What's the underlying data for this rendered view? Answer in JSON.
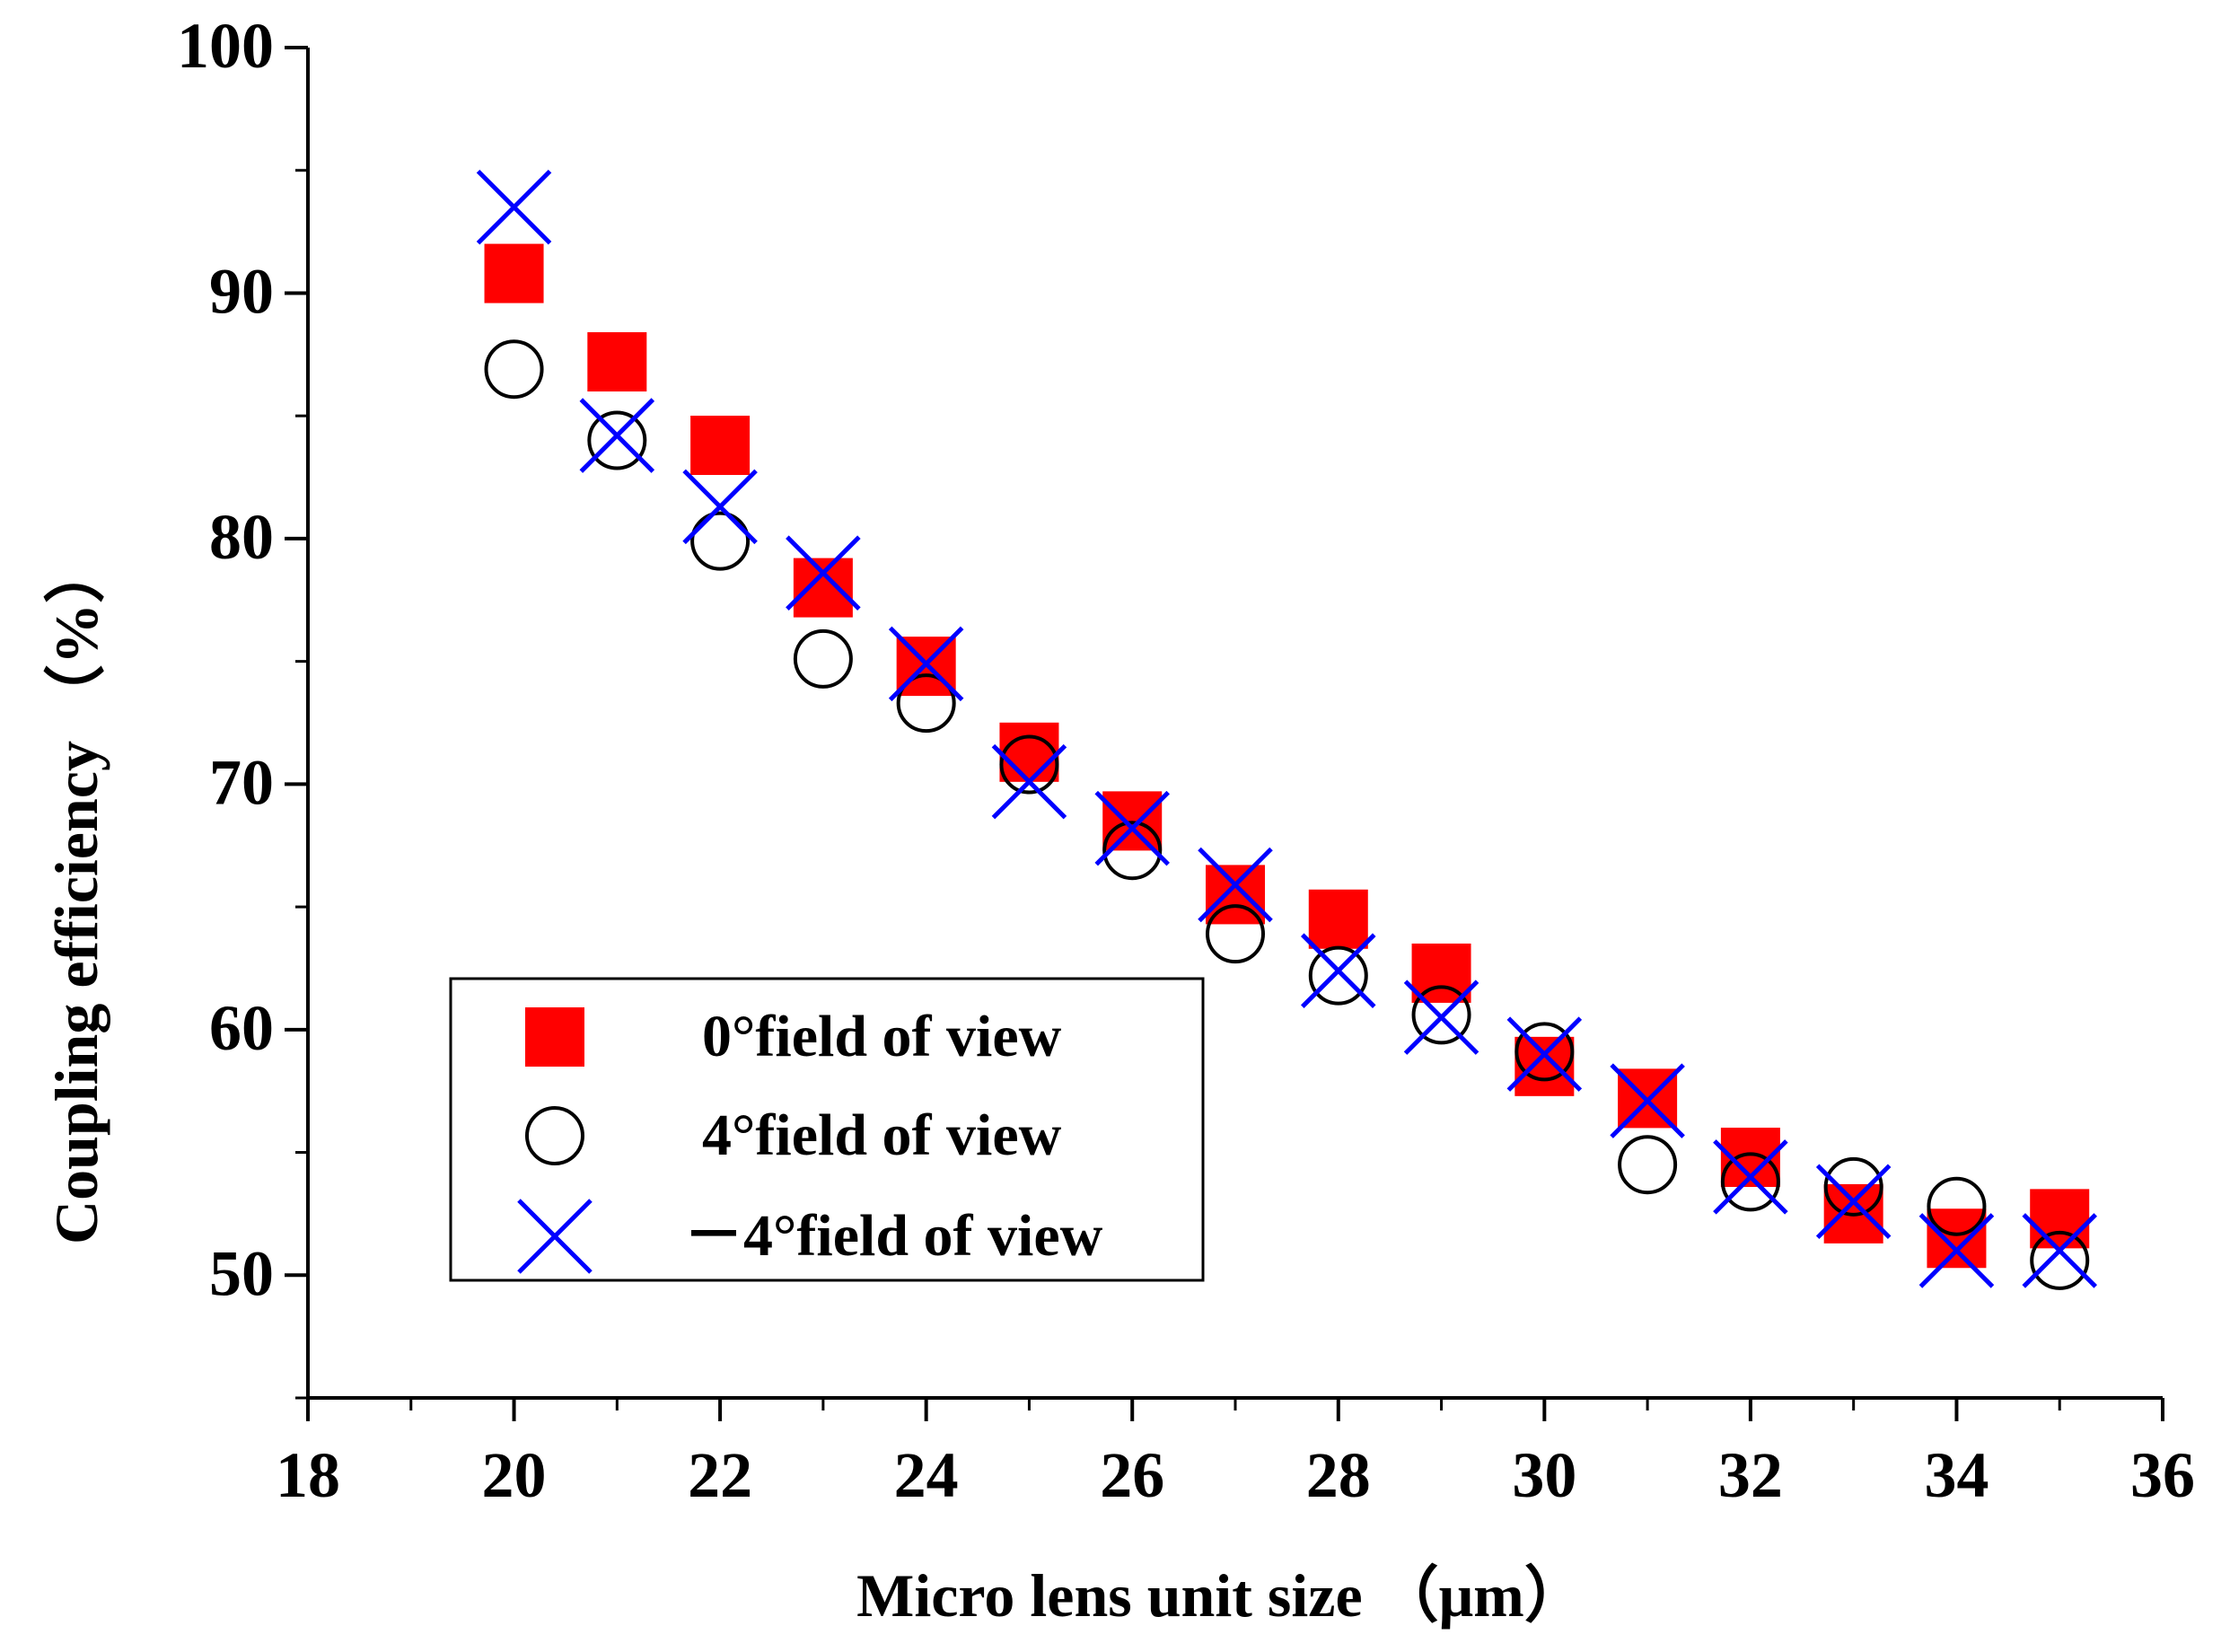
{
  "chart_data": {
    "type": "scatter",
    "title": "",
    "xlabel": "Micro lens unit size （μm）",
    "ylabel": "Coupling efficiency （%）",
    "xlim": [
      18,
      36
    ],
    "ylim": [
      45,
      100
    ],
    "xticks": [
      18,
      20,
      22,
      24,
      26,
      28,
      30,
      32,
      34,
      36
    ],
    "yticks": [
      50,
      60,
      70,
      80,
      90,
      100
    ],
    "x": [
      20,
      21,
      22,
      23,
      24,
      25,
      26,
      27,
      28,
      29,
      30,
      31,
      32,
      33,
      34,
      35
    ],
    "legend_position": "bottom-left",
    "grid": false,
    "series": [
      {
        "name": "0°field of view",
        "marker": "filled-square",
        "color": "#ff0000",
        "values": [
          90.8,
          87.2,
          83.8,
          78.0,
          74.8,
          71.3,
          68.5,
          65.5,
          64.5,
          62.3,
          58.5,
          57.2,
          54.8,
          52.5,
          51.5,
          52.3
        ]
      },
      {
        "name": "4°field of view",
        "marker": "open-circle",
        "color": "#000000",
        "values": [
          86.9,
          84.0,
          79.9,
          75.1,
          73.3,
          70.8,
          67.3,
          63.9,
          62.2,
          60.6,
          59.1,
          54.5,
          53.8,
          53.6,
          52.8,
          50.6
        ]
      },
      {
        "name": "－4°field of view",
        "marker": "x-cross",
        "color": "#0000ff",
        "values": [
          93.5,
          84.2,
          81.3,
          78.6,
          74.9,
          70.1,
          68.2,
          65.9,
          62.4,
          60.5,
          59.0,
          57.1,
          54.0,
          53.0,
          51.0,
          51.0
        ]
      }
    ]
  }
}
